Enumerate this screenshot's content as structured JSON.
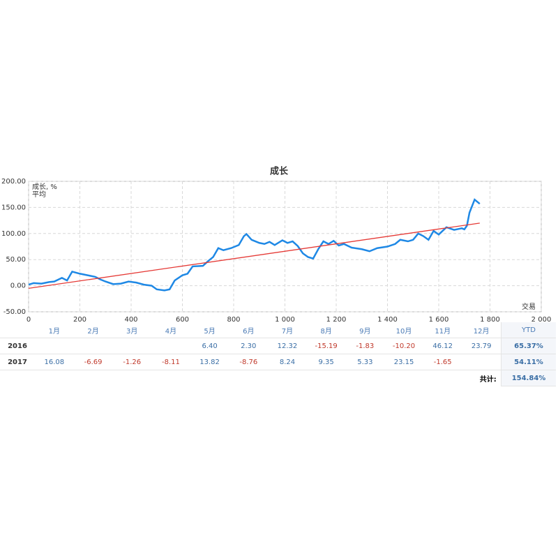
{
  "chart_data": {
    "type": "line",
    "title": "成长",
    "xlabel": "交易",
    "xlim": [
      0,
      2000
    ],
    "xticks": [
      0,
      200,
      400,
      600,
      800,
      {
        "value": 1000,
        "label": "1 000"
      },
      {
        "value": 1200,
        "label": "1 200"
      },
      {
        "value": 1400,
        "label": "1 400"
      },
      {
        "value": 1600,
        "label": "1 600"
      },
      {
        "value": 1800,
        "label": "1 800"
      },
      {
        "value": 2000,
        "label": "2 000"
      }
    ],
    "ylim": [
      -50,
      200
    ],
    "yticks": [
      {
        "value": -50,
        "label": "-50.00"
      },
      {
        "value": 0,
        "label": "0.00"
      },
      {
        "value": 50,
        "label": "50.00"
      },
      {
        "value": 100,
        "label": "100.00"
      },
      {
        "value": 150,
        "label": "150.00"
      },
      {
        "value": 200,
        "label": "200.00"
      }
    ],
    "grid": true,
    "series": [
      {
        "name": "成长, %",
        "color": "#1e88e5",
        "x": [
          0,
          20,
          50,
          80,
          100,
          130,
          150,
          170,
          200,
          230,
          260,
          280,
          300,
          330,
          360,
          390,
          420,
          450,
          480,
          500,
          530,
          550,
          570,
          600,
          620,
          640,
          680,
          700,
          720,
          740,
          760,
          790,
          820,
          840,
          850,
          870,
          900,
          920,
          940,
          960,
          990,
          1010,
          1030,
          1050,
          1070,
          1090,
          1110,
          1130,
          1150,
          1170,
          1190,
          1210,
          1230,
          1260,
          1300,
          1330,
          1360,
          1400,
          1430,
          1450,
          1480,
          1500,
          1520,
          1540,
          1560,
          1580,
          1600,
          1630,
          1660,
          1690,
          1700,
          1710,
          1720,
          1740,
          1760
        ],
        "values": [
          2,
          5,
          4,
          7,
          8,
          15,
          10,
          27,
          23,
          20,
          17,
          12,
          8,
          3,
          4,
          8,
          6,
          2,
          0,
          -7,
          -9,
          -7,
          10,
          20,
          23,
          37,
          38,
          47,
          55,
          72,
          68,
          72,
          78,
          95,
          99,
          88,
          82,
          80,
          84,
          78,
          87,
          82,
          85,
          76,
          62,
          55,
          52,
          70,
          85,
          80,
          86,
          77,
          80,
          73,
          70,
          66,
          72,
          75,
          80,
          88,
          85,
          88,
          100,
          95,
          88,
          105,
          98,
          112,
          107,
          110,
          108,
          115,
          140,
          165,
          157
        ]
      },
      {
        "name": "平均",
        "color": "#e53935",
        "x": [
          0,
          1760
        ],
        "values": [
          -5,
          120
        ]
      }
    ]
  },
  "table": {
    "columns": [
      "1月",
      "2月",
      "3月",
      "4月",
      "5月",
      "6月",
      "7月",
      "8月",
      "9月",
      "10月",
      "11月",
      "12月"
    ],
    "ytd_label": "YTD",
    "rows": [
      {
        "year": "2016",
        "months": [
          null,
          null,
          null,
          null,
          "6.40",
          "2.30",
          "12.32",
          "-15.19",
          "-1.83",
          "-10.20",
          "46.12",
          "23.79"
        ],
        "ytd": "65.37%"
      },
      {
        "year": "2017",
        "months": [
          "16.08",
          "-6.69",
          "-1.26",
          "-8.11",
          "13.82",
          "-8.76",
          "8.24",
          "9.35",
          "5.33",
          "23.15",
          "-1.65",
          null
        ],
        "ytd": "54.11%"
      }
    ],
    "total_label": "共计:",
    "total": "154.84%"
  }
}
